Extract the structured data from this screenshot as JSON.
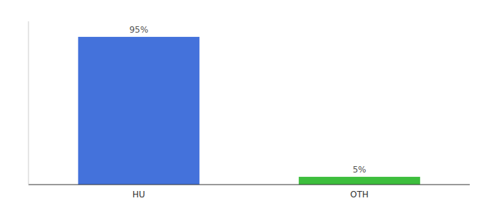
{
  "chart_data": {
    "type": "bar",
    "categories": [
      "HU",
      "OTH"
    ],
    "values": [
      95,
      5
    ],
    "value_labels": [
      "95%",
      "5%"
    ],
    "colors": [
      "#4472db",
      "#3dbe3d"
    ],
    "ylim": [
      0,
      105
    ],
    "tick_labels": "x",
    "data_labels": true,
    "grid": false
  }
}
